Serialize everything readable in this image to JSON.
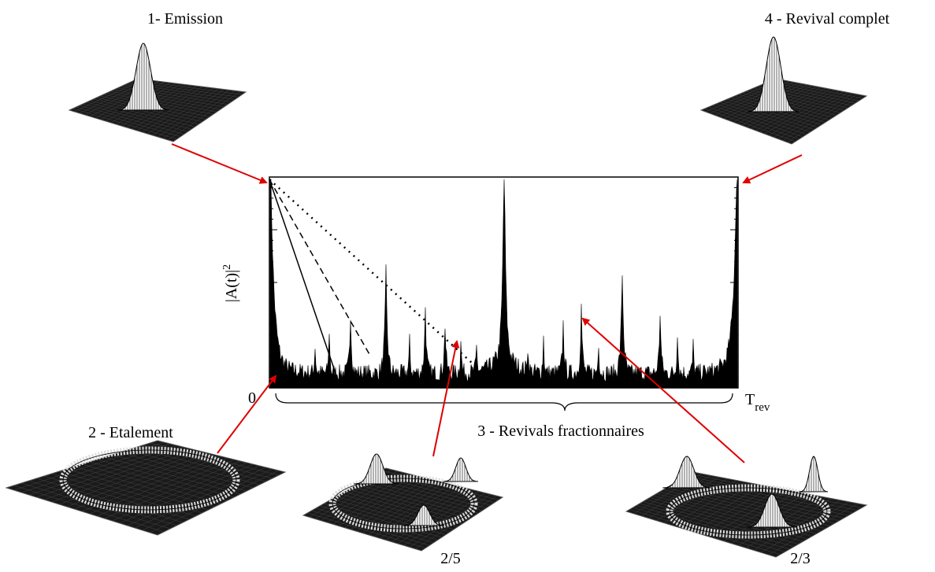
{
  "labels": {
    "emission": "1- Emission",
    "revival_complet": "4 - Revival complet",
    "etalement": "2 - Etalement",
    "revivals_fractionnaires": "3 - Revivals fractionnaires"
  },
  "axis": {
    "y_label": "|A(t)|",
    "y_exponent": "2",
    "origin": "0",
    "end": "T",
    "end_subscript": "rev"
  },
  "fractions": [
    "2/5",
    "2/3"
  ]
}
